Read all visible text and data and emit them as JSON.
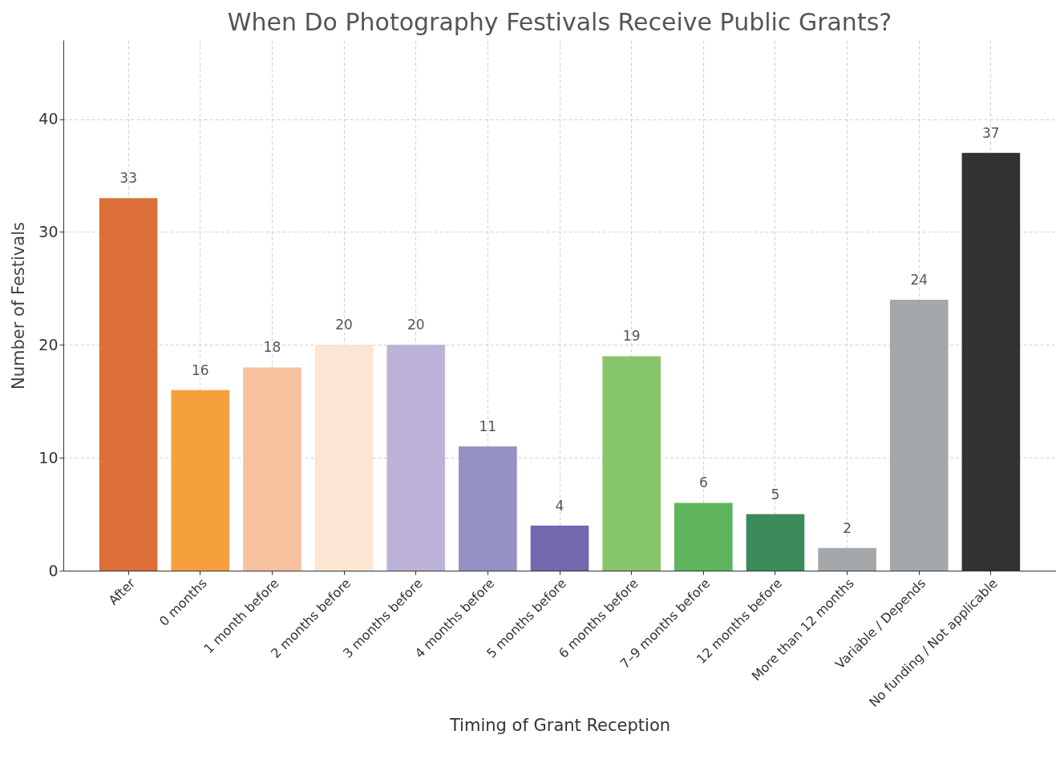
{
  "chart_data": {
    "type": "bar",
    "title": "When Do Photography Festivals Receive Public Grants?",
    "xlabel": "Timing of Grant Reception",
    "ylabel": "Number of Festivals",
    "categories": [
      "After",
      "0 months",
      "1 month before",
      "2 months before",
      "3 months before",
      "4 months before",
      "5 months before",
      "6 months before",
      "7–9 months before",
      "12 months before",
      "More than 12 months",
      "Variable / Depends",
      "No funding / Not applicable"
    ],
    "values": [
      33,
      16,
      18,
      20,
      20,
      11,
      4,
      19,
      6,
      5,
      2,
      24,
      37
    ],
    "colors": [
      "#dc6f38",
      "#f5a03c",
      "#f8c29e",
      "#fae6d2",
      "#bdb3d8",
      "#9691c4",
      "#7467ae",
      "#86c56a",
      "#5fb55d",
      "#3a8a5a",
      "#a5a8ab",
      "#a5a8ab",
      "#333131"
    ],
    "ylim": [
      0,
      47
    ],
    "yticks": [
      0,
      10,
      20,
      30,
      40
    ],
    "grid": true,
    "data_labels": true
  }
}
